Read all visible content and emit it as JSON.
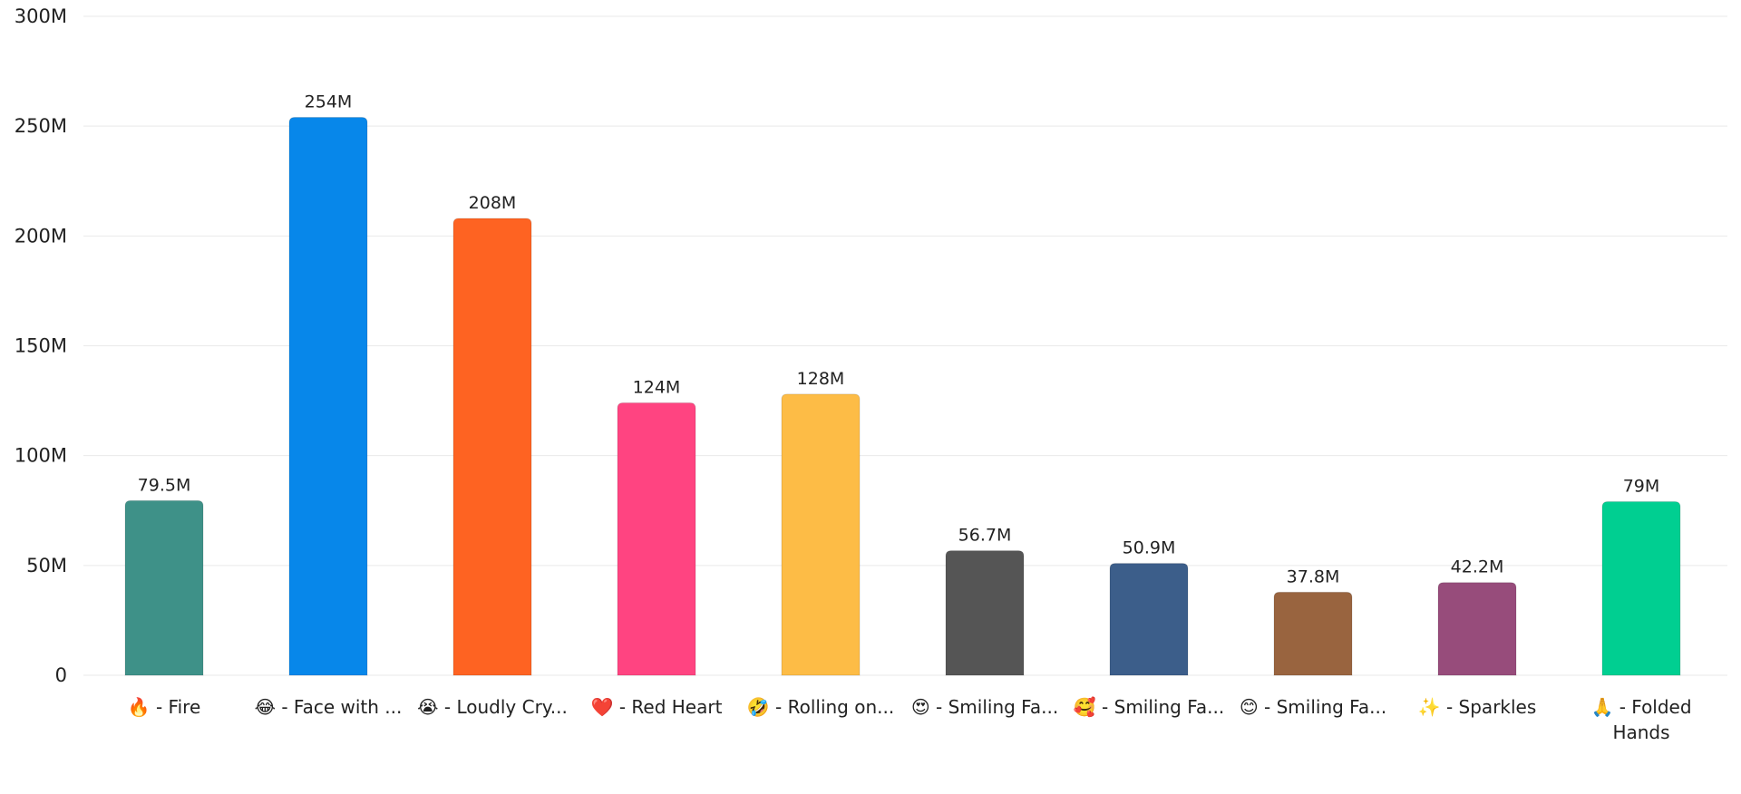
{
  "chart_data": {
    "type": "bar",
    "title": "",
    "xlabel": "",
    "ylabel": "",
    "ylim": [
      0,
      300000000
    ],
    "grid": true,
    "y_ticks": [
      {
        "value": 0,
        "label": "0"
      },
      {
        "value": 50000000,
        "label": "50M"
      },
      {
        "value": 100000000,
        "label": "100M"
      },
      {
        "value": 150000000,
        "label": "150M"
      },
      {
        "value": 200000000,
        "label": "200M"
      },
      {
        "value": 250000000,
        "label": "250M"
      },
      {
        "value": 300000000,
        "label": "300M"
      }
    ],
    "categories": [
      {
        "emoji": "🔥",
        "lines": [
          "- Fire"
        ]
      },
      {
        "emoji": "😂",
        "lines": [
          "- Face with ..."
        ]
      },
      {
        "emoji": "😭",
        "lines": [
          "- Loudly Cry..."
        ]
      },
      {
        "emoji": "❤️",
        "lines": [
          "- Red Heart"
        ]
      },
      {
        "emoji": "🤣",
        "lines": [
          "- Rolling on..."
        ]
      },
      {
        "emoji": "😍",
        "lines": [
          "- Smiling Fa..."
        ]
      },
      {
        "emoji": "🥰",
        "lines": [
          "- Smiling Fa..."
        ]
      },
      {
        "emoji": "😊",
        "lines": [
          "- Smiling Fa..."
        ]
      },
      {
        "emoji": "✨",
        "lines": [
          "- Sparkles"
        ]
      },
      {
        "emoji": "🙏",
        "lines": [
          "- Folded",
          "Hands"
        ]
      }
    ],
    "values": [
      79500000,
      254000000,
      208000000,
      124000000,
      128000000,
      56700000,
      50900000,
      37800000,
      42200000,
      79000000
    ],
    "value_labels": [
      "79.5M",
      "254M",
      "208M",
      "124M",
      "128M",
      "56.7M",
      "50.9M",
      "37.8M",
      "42.2M",
      "79M"
    ],
    "colors": [
      "#3e9188",
      "#0787ea",
      "#fe6322",
      "#ff4481",
      "#fdbc46",
      "#555555",
      "#3c5e8a",
      "#99643f",
      "#974c7b",
      "#00cf91"
    ]
  }
}
